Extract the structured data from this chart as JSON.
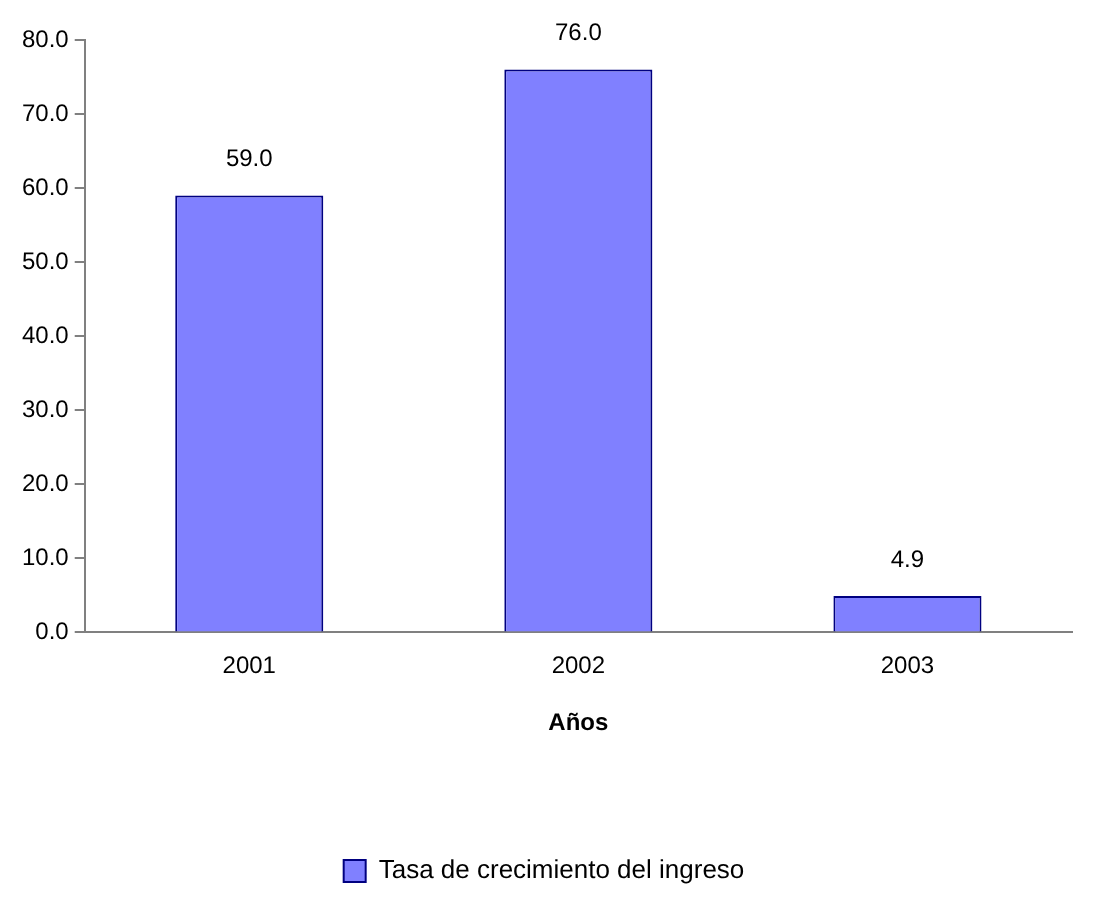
{
  "chart_data": {
    "type": "bar",
    "xlabel": "Años",
    "categories": [
      "2001",
      "2002",
      "2003"
    ],
    "series": [
      {
        "name": "Tasa de crecimiento del ingreso",
        "color": "#8080ff",
        "values": [
          59.0,
          76.0,
          4.9
        ],
        "value_labels": [
          "59.0",
          "76.0",
          "4.9"
        ]
      }
    ],
    "ylim": [
      0,
      80
    ],
    "yticks": [
      {
        "value": 0,
        "label": "0.0"
      },
      {
        "value": 10,
        "label": "10.0"
      },
      {
        "value": 20,
        "label": "20.0"
      },
      {
        "value": 30,
        "label": "30.0"
      },
      {
        "value": 40,
        "label": "40.0"
      },
      {
        "value": 50,
        "label": "50.0"
      },
      {
        "value": 60,
        "label": "60.0"
      },
      {
        "value": 70,
        "label": "70.0"
      },
      {
        "value": 80,
        "label": "80.0"
      }
    ],
    "grid": false,
    "legend": "bottom"
  }
}
